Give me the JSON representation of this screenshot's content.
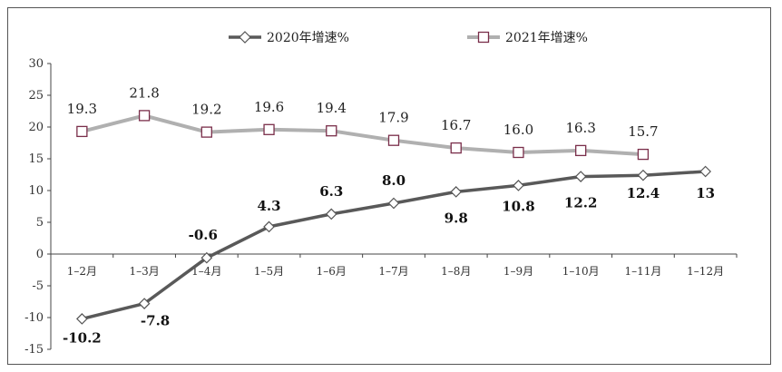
{
  "chart_data": {
    "type": "line",
    "categories": [
      "1–2月",
      "1–3月",
      "1–4月",
      "1–5月",
      "1–6月",
      "1–7月",
      "1–8月",
      "1–9月",
      "1–10月",
      "1–11月",
      "1–12月"
    ],
    "series": [
      {
        "name": "2020年增速%",
        "values": [
          -10.2,
          -7.8,
          -0.6,
          4.3,
          6.3,
          8.0,
          9.8,
          10.8,
          12.2,
          12.4,
          13
        ],
        "labels": [
          "-10.2",
          "-7.8",
          "-0.6",
          "4.3",
          "6.3",
          "8.0",
          "9.8",
          "10.8",
          "12.2",
          "12.4",
          "13"
        ],
        "color": "#595959",
        "marker": "diamond"
      },
      {
        "name": "2021年增速%",
        "values": [
          19.3,
          21.8,
          19.2,
          19.6,
          19.4,
          17.9,
          16.7,
          16.0,
          16.3,
          15.7,
          null
        ],
        "labels": [
          "19.3",
          "21.8",
          "19.2",
          "19.6",
          "19.4",
          "17.9",
          "16.7",
          "16.0",
          "16.3",
          "15.7",
          ""
        ],
        "color": "#b0b0b0",
        "marker": "square",
        "marker_edge": "#7a2e4a"
      }
    ],
    "yticks": [
      "30",
      "25",
      "20",
      "15",
      "10",
      "5",
      "0",
      "-5",
      "-10",
      "-15"
    ],
    "ylim": [
      -15,
      30
    ],
    "legend": "top-center"
  }
}
